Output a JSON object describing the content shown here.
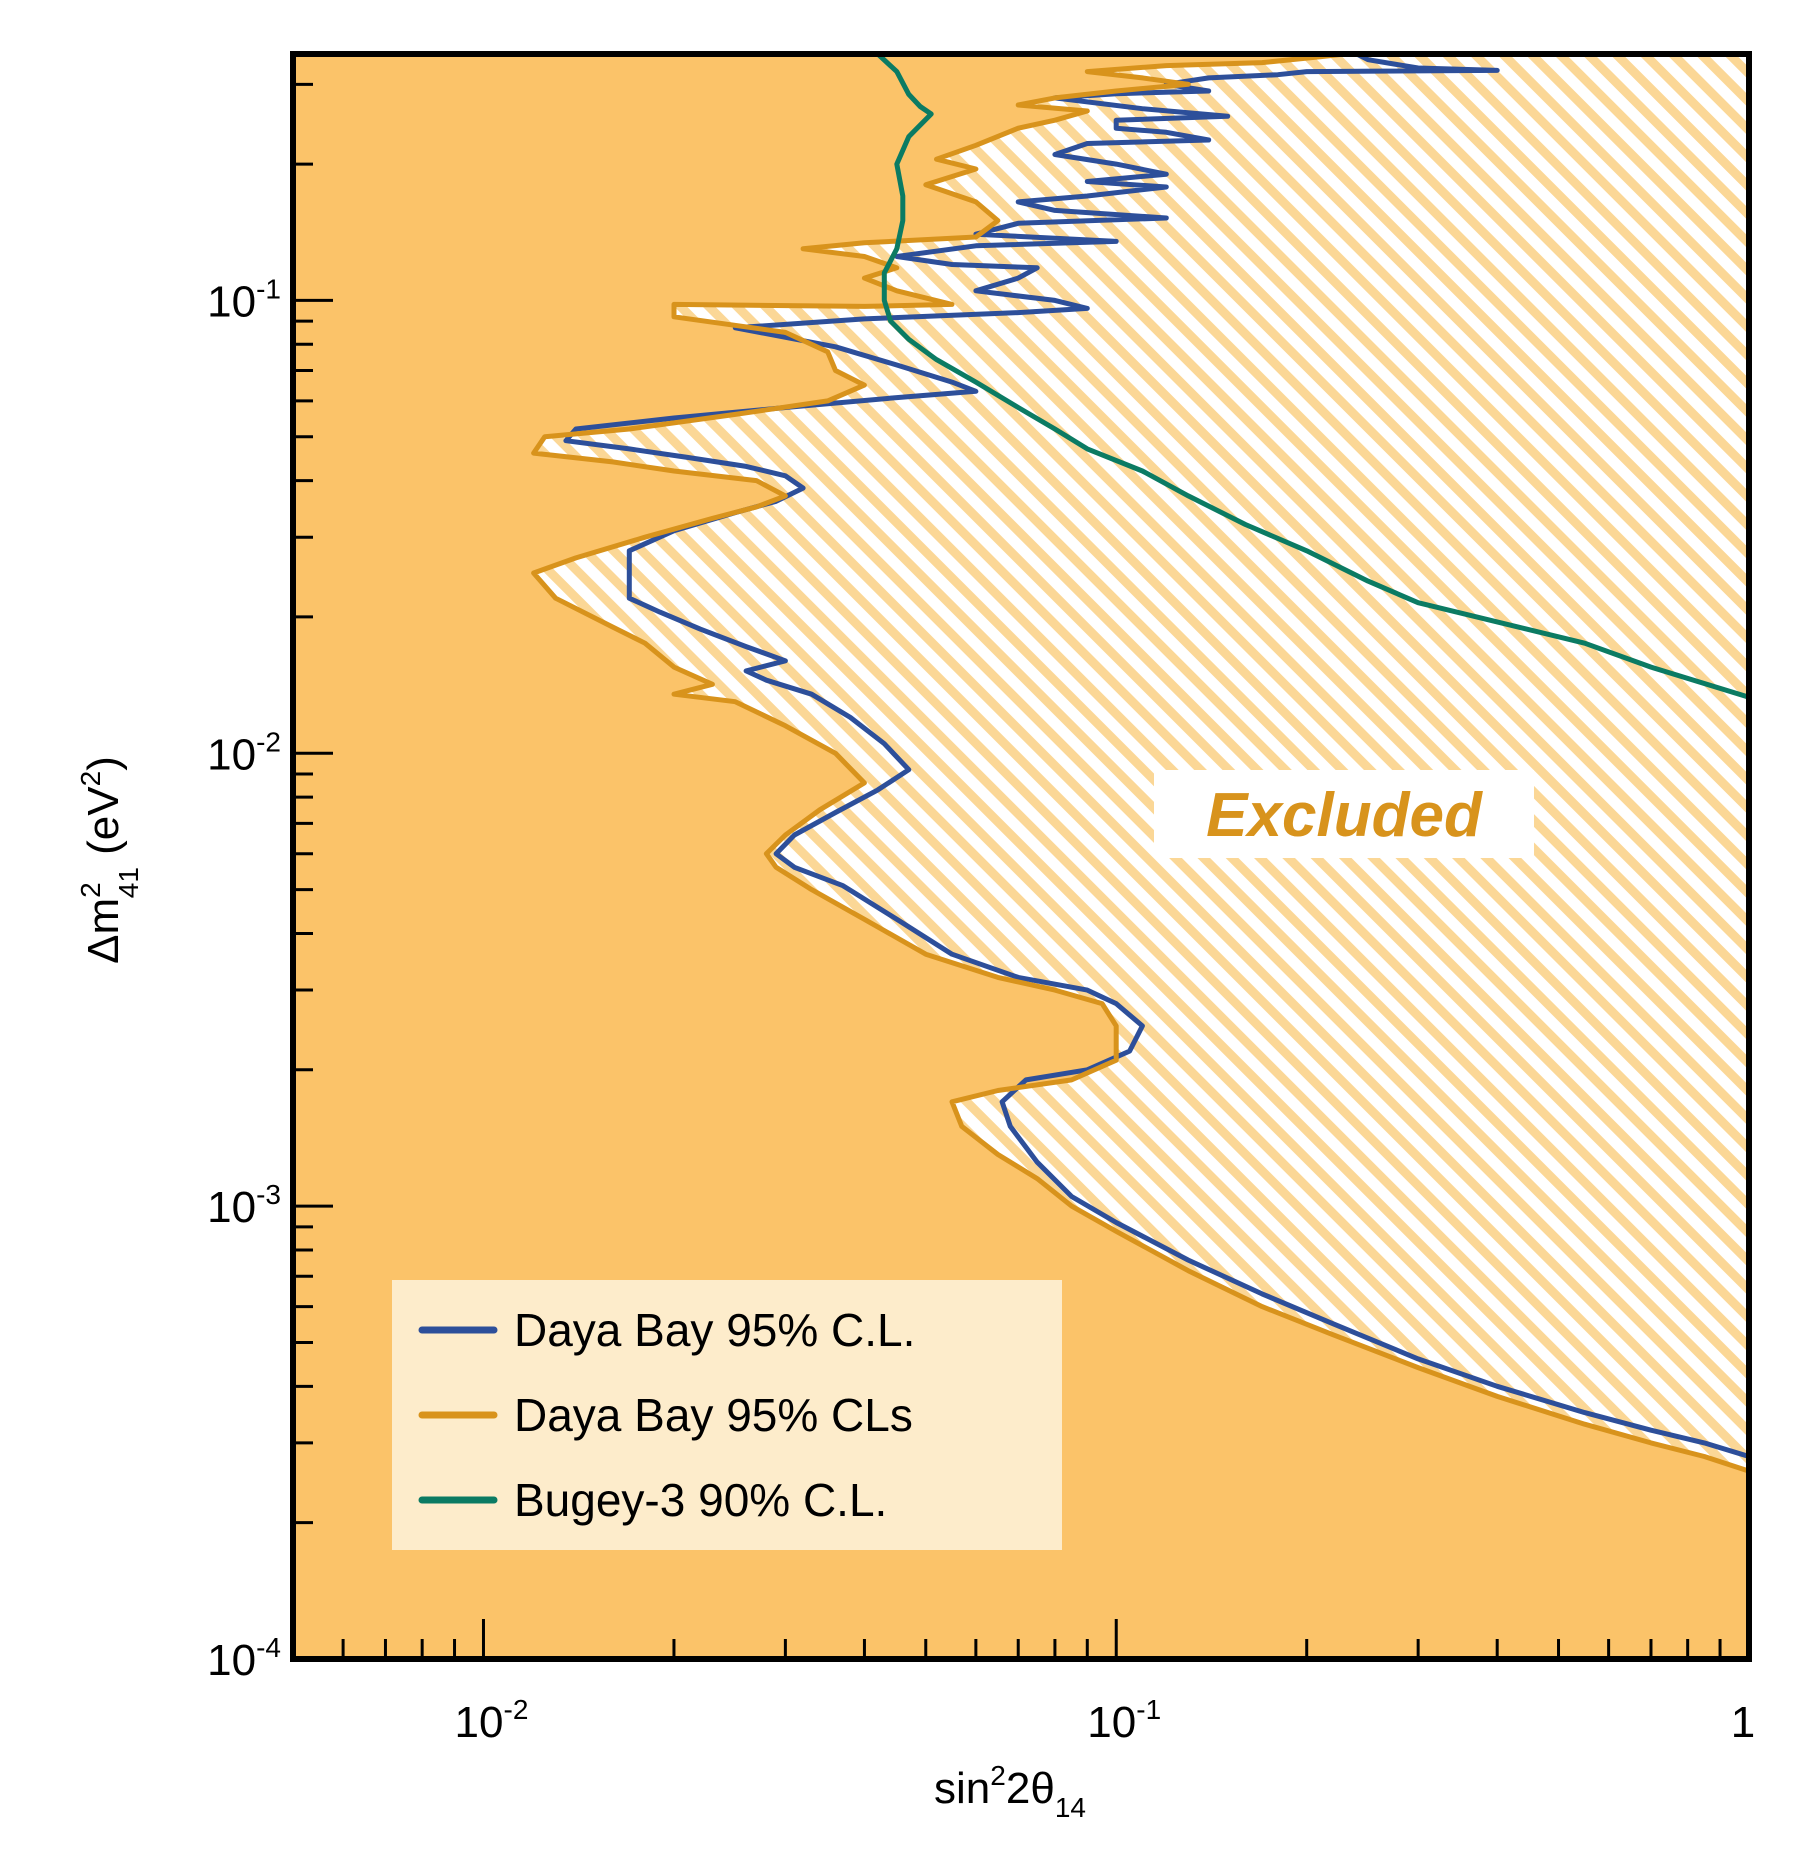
{
  "chart_data": {
    "type": "line",
    "xlabel": "sin²2θ₁₄",
    "ylabel": "Δm²₄₁ (eV²)",
    "xscale": "log",
    "yscale": "log",
    "xlim": [
      0.005,
      1
    ],
    "ylim": [
      0.0001,
      0.35
    ],
    "x_tick_labels": [
      {
        "value": 0.01,
        "base": "10",
        "exp": "-2"
      },
      {
        "value": 0.1,
        "base": "10",
        "exp": "-1"
      },
      {
        "value": 1,
        "base": "1",
        "exp": ""
      }
    ],
    "y_tick_labels": [
      {
        "value": 0.0001,
        "base": "10",
        "exp": "-4"
      },
      {
        "value": 0.001,
        "base": "10",
        "exp": "-3"
      },
      {
        "value": 0.01,
        "base": "10",
        "exp": "-2"
      },
      {
        "value": 0.1,
        "base": "10",
        "exp": "-1"
      }
    ],
    "annotation": "Excluded",
    "legend_position": "bottom-left",
    "colors": {
      "fill": "#fbc369",
      "hatch": "#fbd796",
      "legend_bg": "#fdeccb"
    },
    "series": [
      {
        "name": "Daya Bay 95% C.L.",
        "color": "#2d4f9a",
        "points": [
          [
            1.0,
            0.00028
          ],
          [
            0.85,
            0.0003
          ],
          [
            0.7,
            0.00032
          ],
          [
            0.55,
            0.00035
          ],
          [
            0.4,
            0.0004
          ],
          [
            0.3,
            0.00046
          ],
          [
            0.22,
            0.00055
          ],
          [
            0.17,
            0.00064
          ],
          [
            0.13,
            0.00076
          ],
          [
            0.1,
            0.00092
          ],
          [
            0.085,
            0.00105
          ],
          [
            0.075,
            0.00125
          ],
          [
            0.068,
            0.0015
          ],
          [
            0.066,
            0.0017
          ],
          [
            0.072,
            0.0019
          ],
          [
            0.09,
            0.002
          ],
          [
            0.105,
            0.0022
          ],
          [
            0.11,
            0.0025
          ],
          [
            0.1,
            0.0028
          ],
          [
            0.09,
            0.003
          ],
          [
            0.07,
            0.0032
          ],
          [
            0.055,
            0.0036
          ],
          [
            0.045,
            0.0043
          ],
          [
            0.037,
            0.0051
          ],
          [
            0.031,
            0.0056
          ],
          [
            0.029,
            0.006
          ],
          [
            0.031,
            0.0066
          ],
          [
            0.036,
            0.0074
          ],
          [
            0.042,
            0.0083
          ],
          [
            0.047,
            0.0092
          ],
          [
            0.043,
            0.0105
          ],
          [
            0.038,
            0.012
          ],
          [
            0.033,
            0.0135
          ],
          [
            0.028,
            0.0145
          ],
          [
            0.026,
            0.0152
          ],
          [
            0.03,
            0.016
          ],
          [
            0.026,
            0.0172
          ],
          [
            0.022,
            0.0188
          ],
          [
            0.019,
            0.0205
          ],
          [
            0.017,
            0.022
          ],
          [
            0.017,
            0.025
          ],
          [
            0.017,
            0.028
          ],
          [
            0.02,
            0.031
          ],
          [
            0.025,
            0.034
          ],
          [
            0.029,
            0.036
          ],
          [
            0.032,
            0.0385
          ],
          [
            0.03,
            0.041
          ],
          [
            0.026,
            0.043
          ],
          [
            0.021,
            0.045
          ],
          [
            0.017,
            0.047
          ],
          [
            0.0135,
            0.049
          ],
          [
            0.014,
            0.052
          ],
          [
            0.02,
            0.055
          ],
          [
            0.03,
            0.058
          ],
          [
            0.045,
            0.061
          ],
          [
            0.06,
            0.063
          ],
          [
            0.055,
            0.066
          ],
          [
            0.045,
            0.072
          ],
          [
            0.036,
            0.079
          ],
          [
            0.025,
            0.087
          ],
          [
            0.04,
            0.091
          ],
          [
            0.07,
            0.094
          ],
          [
            0.09,
            0.096
          ],
          [
            0.08,
            0.1
          ],
          [
            0.06,
            0.105
          ],
          [
            0.07,
            0.112
          ],
          [
            0.075,
            0.118
          ],
          [
            0.055,
            0.12
          ],
          [
            0.045,
            0.125
          ],
          [
            0.06,
            0.132
          ],
          [
            0.1,
            0.135
          ],
          [
            0.06,
            0.14
          ],
          [
            0.07,
            0.148
          ],
          [
            0.12,
            0.152
          ],
          [
            0.08,
            0.158
          ],
          [
            0.07,
            0.165
          ],
          [
            0.09,
            0.17
          ],
          [
            0.12,
            0.178
          ],
          [
            0.09,
            0.183
          ],
          [
            0.12,
            0.19
          ],
          [
            0.1,
            0.2
          ],
          [
            0.08,
            0.21
          ],
          [
            0.09,
            0.222
          ],
          [
            0.14,
            0.226
          ],
          [
            0.12,
            0.235
          ],
          [
            0.1,
            0.24
          ],
          [
            0.1,
            0.25
          ],
          [
            0.15,
            0.255
          ],
          [
            0.11,
            0.265
          ],
          [
            0.08,
            0.28
          ],
          [
            0.1,
            0.286
          ],
          [
            0.14,
            0.29
          ],
          [
            0.12,
            0.3
          ],
          [
            0.14,
            0.31
          ],
          [
            0.18,
            0.315
          ],
          [
            0.2,
            0.32
          ],
          [
            0.4,
            0.322
          ],
          [
            0.3,
            0.326
          ],
          [
            0.25,
            0.34
          ],
          [
            0.24,
            0.35
          ]
        ]
      },
      {
        "name": "Daya Bay 95% CLs",
        "color": "#d8931c",
        "points": [
          [
            1.0,
            0.00026
          ],
          [
            0.85,
            0.00028
          ],
          [
            0.7,
            0.0003
          ],
          [
            0.55,
            0.00033
          ],
          [
            0.4,
            0.00038
          ],
          [
            0.3,
            0.00044
          ],
          [
            0.22,
            0.00052
          ],
          [
            0.17,
            0.0006
          ],
          [
            0.13,
            0.00072
          ],
          [
            0.1,
            0.00088
          ],
          [
            0.085,
            0.001
          ],
          [
            0.075,
            0.00115
          ],
          [
            0.065,
            0.0013
          ],
          [
            0.057,
            0.0015
          ],
          [
            0.055,
            0.0017
          ],
          [
            0.065,
            0.0018
          ],
          [
            0.085,
            0.0019
          ],
          [
            0.1,
            0.0021
          ],
          [
            0.1,
            0.0025
          ],
          [
            0.095,
            0.0028
          ],
          [
            0.08,
            0.003
          ],
          [
            0.065,
            0.0032
          ],
          [
            0.05,
            0.0036
          ],
          [
            0.04,
            0.0043
          ],
          [
            0.033,
            0.005
          ],
          [
            0.029,
            0.0056
          ],
          [
            0.028,
            0.006
          ],
          [
            0.03,
            0.0066
          ],
          [
            0.034,
            0.0075
          ],
          [
            0.04,
            0.0086
          ],
          [
            0.036,
            0.01
          ],
          [
            0.03,
            0.0115
          ],
          [
            0.025,
            0.013
          ],
          [
            0.02,
            0.0135
          ],
          [
            0.023,
            0.0142
          ],
          [
            0.02,
            0.0155
          ],
          [
            0.018,
            0.0175
          ],
          [
            0.016,
            0.019
          ],
          [
            0.013,
            0.022
          ],
          [
            0.012,
            0.025
          ],
          [
            0.014,
            0.027
          ],
          [
            0.018,
            0.03
          ],
          [
            0.023,
            0.033
          ],
          [
            0.027,
            0.035
          ],
          [
            0.03,
            0.037
          ],
          [
            0.027,
            0.04
          ],
          [
            0.02,
            0.042
          ],
          [
            0.016,
            0.044
          ],
          [
            0.012,
            0.046
          ],
          [
            0.0125,
            0.05
          ],
          [
            0.017,
            0.052
          ],
          [
            0.025,
            0.056
          ],
          [
            0.035,
            0.06
          ],
          [
            0.04,
            0.065
          ],
          [
            0.036,
            0.07
          ],
          [
            0.035,
            0.077
          ],
          [
            0.03,
            0.085
          ],
          [
            0.02,
            0.092
          ],
          [
            0.02,
            0.098
          ],
          [
            0.04,
            0.097
          ],
          [
            0.055,
            0.098
          ],
          [
            0.045,
            0.105
          ],
          [
            0.04,
            0.112
          ],
          [
            0.045,
            0.118
          ],
          [
            0.04,
            0.125
          ],
          [
            0.032,
            0.13
          ],
          [
            0.04,
            0.134
          ],
          [
            0.06,
            0.138
          ],
          [
            0.065,
            0.15
          ],
          [
            0.06,
            0.165
          ],
          [
            0.05,
            0.18
          ],
          [
            0.06,
            0.195
          ],
          [
            0.052,
            0.205
          ],
          [
            0.06,
            0.22
          ],
          [
            0.07,
            0.24
          ],
          [
            0.08,
            0.25
          ],
          [
            0.09,
            0.262
          ],
          [
            0.07,
            0.27
          ],
          [
            0.08,
            0.28
          ],
          [
            0.1,
            0.29
          ],
          [
            0.13,
            0.3
          ],
          [
            0.11,
            0.31
          ],
          [
            0.09,
            0.32
          ],
          [
            0.12,
            0.33
          ],
          [
            0.17,
            0.335
          ],
          [
            0.21,
            0.345
          ],
          [
            0.23,
            0.35
          ]
        ]
      },
      {
        "name": "Bugey-3 90% C.L.",
        "color": "#0b7b63",
        "points": [
          [
            1.0,
            0.0133
          ],
          [
            0.7,
            0.0155
          ],
          [
            0.55,
            0.0175
          ],
          [
            0.4,
            0.0195
          ],
          [
            0.3,
            0.0215
          ],
          [
            0.25,
            0.024
          ],
          [
            0.2,
            0.028
          ],
          [
            0.16,
            0.032
          ],
          [
            0.13,
            0.037
          ],
          [
            0.11,
            0.042
          ],
          [
            0.09,
            0.047
          ],
          [
            0.08,
            0.052
          ],
          [
            0.07,
            0.058
          ],
          [
            0.06,
            0.066
          ],
          [
            0.052,
            0.074
          ],
          [
            0.047,
            0.082
          ],
          [
            0.044,
            0.09
          ],
          [
            0.043,
            0.1
          ],
          [
            0.043,
            0.115
          ],
          [
            0.045,
            0.13
          ],
          [
            0.046,
            0.15
          ],
          [
            0.046,
            0.17
          ],
          [
            0.045,
            0.2
          ],
          [
            0.047,
            0.23
          ],
          [
            0.051,
            0.258
          ],
          [
            0.049,
            0.268
          ],
          [
            0.047,
            0.285
          ],
          [
            0.045,
            0.32
          ],
          [
            0.042,
            0.35
          ]
        ]
      }
    ]
  }
}
